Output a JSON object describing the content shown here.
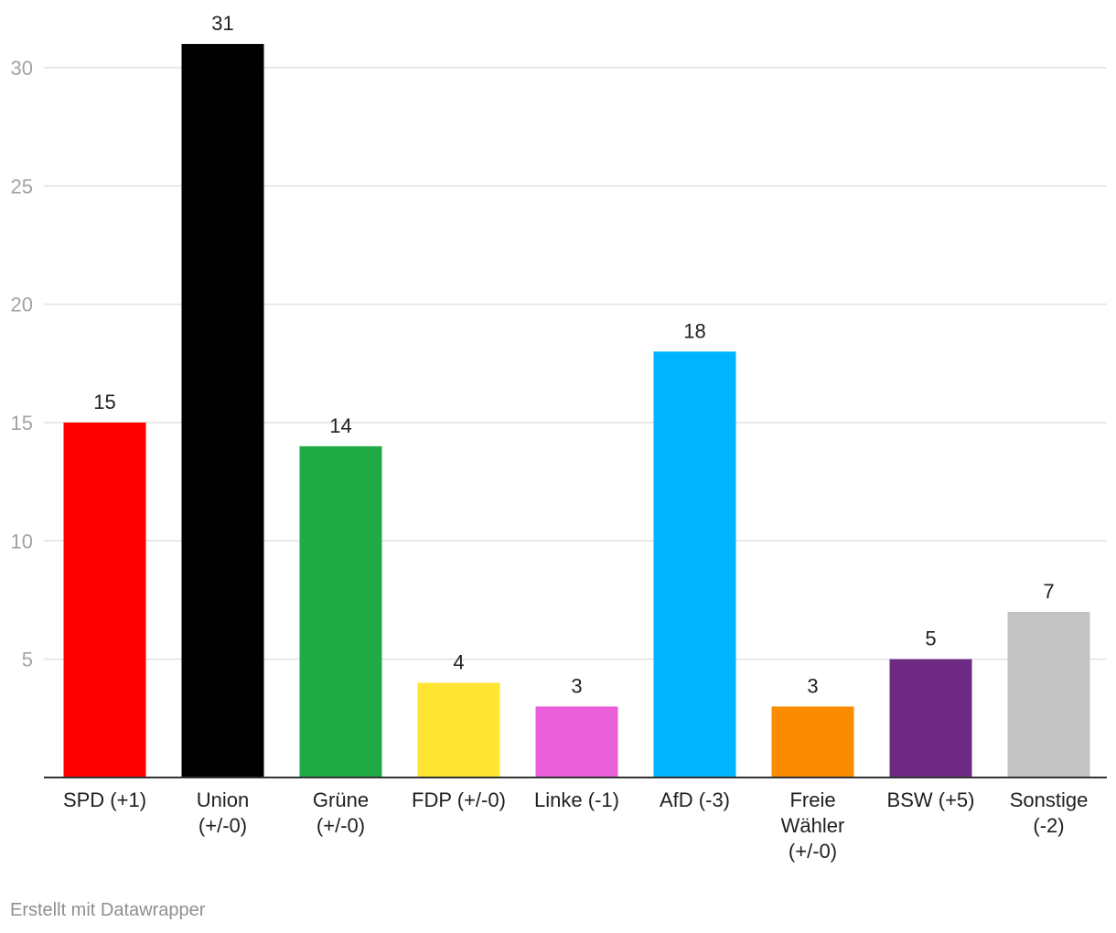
{
  "chart_data": {
    "type": "bar",
    "categories": [
      [
        "SPD (+1)"
      ],
      [
        "Union",
        "(+/-0)"
      ],
      [
        "Grüne",
        "(+/-0)"
      ],
      [
        "FDP (+/-0)"
      ],
      [
        "Linke (-1)"
      ],
      [
        "AfD (-3)"
      ],
      [
        "Freie",
        "Wähler",
        "(+/-0)"
      ],
      [
        "BSW (+5)"
      ],
      [
        "Sonstige",
        "(-2)"
      ]
    ],
    "values": [
      15,
      31,
      14,
      4,
      3,
      18,
      3,
      5,
      7
    ],
    "colors": [
      "#ff0000",
      "#000000",
      "#1faa46",
      "#ffe531",
      "#eb5fda",
      "#00b4ff",
      "#fb8c00",
      "#6e2a82",
      "#c3c3c3"
    ],
    "ylim": [
      0,
      30
    ],
    "yticks": [
      5,
      10,
      15,
      20,
      25,
      30
    ],
    "grid": true,
    "gridline_color": "#e2e2e2",
    "axis_color": "#333333"
  },
  "footer": {
    "credit": "Erstellt mit Datawrapper"
  }
}
